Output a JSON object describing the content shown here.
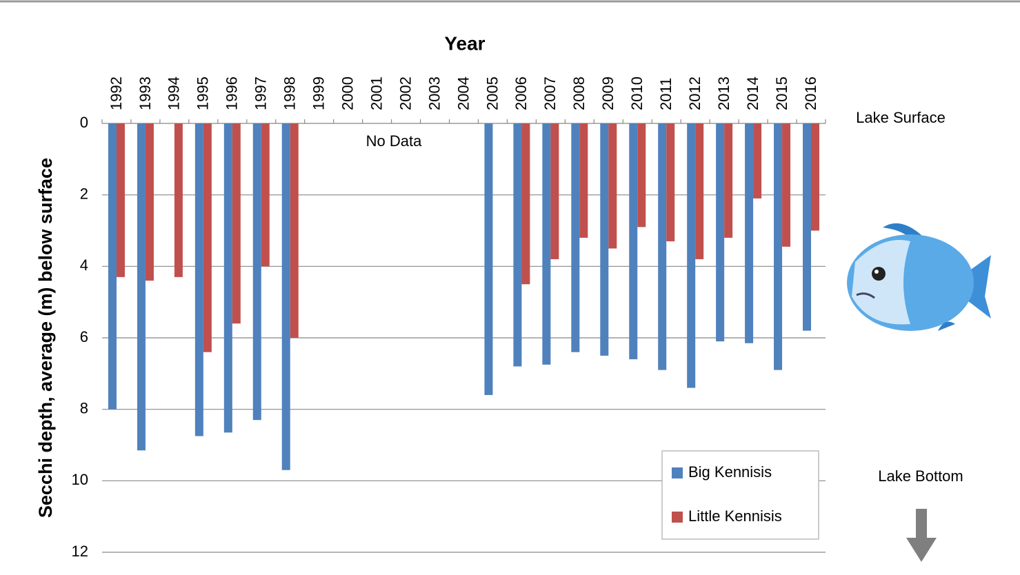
{
  "chart_data": {
    "type": "bar",
    "x_label": "Year",
    "y_label": "Secchi depth, average (m) below surface",
    "categories": [
      "1992",
      "1993",
      "1994",
      "1995",
      "1996",
      "1997",
      "1998",
      "1999",
      "2000",
      "2001",
      "2002",
      "2003",
      "2004",
      "2005",
      "2006",
      "2007",
      "2008",
      "2009",
      "2010",
      "2011",
      "2012",
      "2013",
      "2014",
      "2015",
      "2016"
    ],
    "series": [
      {
        "name": "Big Kennisis",
        "color": "#4f81bd",
        "values": [
          8.0,
          9.15,
          null,
          8.75,
          8.65,
          8.3,
          9.7,
          null,
          null,
          null,
          null,
          null,
          null,
          7.6,
          6.8,
          6.75,
          6.4,
          6.5,
          6.6,
          6.9,
          7.4,
          6.1,
          6.15,
          6.9,
          5.8
        ]
      },
      {
        "name": "Little Kennisis",
        "color": "#c0504d",
        "values": [
          4.3,
          4.4,
          4.3,
          6.4,
          5.6,
          4.0,
          6.0,
          null,
          null,
          null,
          null,
          null,
          null,
          null,
          4.5,
          3.8,
          3.2,
          3.5,
          2.9,
          3.3,
          3.8,
          3.2,
          2.1,
          3.45,
          3.0
        ]
      }
    ],
    "ylim": [
      0,
      12
    ],
    "yticks": [
      0,
      2,
      4,
      6,
      8,
      10,
      12
    ],
    "y_inverted": true,
    "grid": true,
    "legend": "lower right",
    "annotations": [
      "No Data",
      "Lake Surface",
      "Lake Bottom"
    ]
  }
}
